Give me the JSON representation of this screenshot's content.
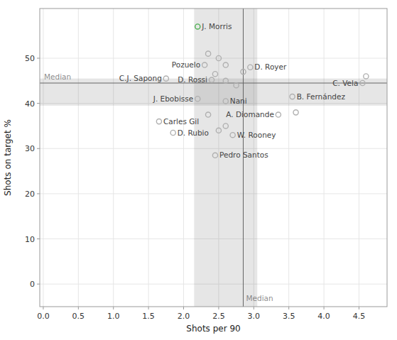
{
  "chart_data": {
    "type": "scatter",
    "x": [
      2.2,
      2.3,
      1.75,
      2.4,
      2.2,
      2.6,
      1.65,
      1.85,
      2.7,
      2.45,
      2.95,
      3.55,
      3.35,
      4.55,
      2.35,
      2.5,
      2.6,
      2.85,
      2.45,
      2.6,
      2.75,
      2.35,
      2.6,
      2.5,
      4.6,
      3.6
    ],
    "values": [
      57,
      48.5,
      45.5,
      45.2,
      41,
      40.5,
      36,
      33.5,
      33,
      28.5,
      48,
      41.5,
      37.5,
      44.5,
      51,
      50,
      48.5,
      47,
      46.5,
      45,
      44,
      37.5,
      35,
      34,
      46,
      38
    ],
    "labels": [
      "J. Morris",
      "Pozuelo",
      "C.J. Sapong",
      "D. Rossi",
      "J. Ebobisse",
      "Nani",
      "Carles Gil",
      "D. Rubio",
      "W. Rooney",
      "Pedro Santos",
      "D. Royer",
      "B. Fernández",
      "A. Diomande",
      "C. Vela",
      null,
      null,
      null,
      null,
      null,
      null,
      null,
      null,
      null,
      null,
      null,
      null
    ],
    "colors": [
      "#4caf50",
      "#b0b0b0",
      "#b0b0b0",
      "#b0b0b0",
      "#b0b0b0",
      "#b0b0b0",
      "#b0b0b0",
      "#b0b0b0",
      "#b0b0b0",
      "#b0b0b0",
      "#b0b0b0",
      "#b0b0b0",
      "#b0b0b0",
      "#b0b0b0",
      "#b0b0b0",
      "#b0b0b0",
      "#b0b0b0",
      "#b0b0b0",
      "#b0b0b0",
      "#b0b0b0",
      "#b0b0b0",
      "#b0b0b0",
      "#b0b0b0",
      "#b0b0b0",
      "#b0b0b0",
      "#b0b0b0"
    ],
    "reference_lines": [
      {
        "axis": "x",
        "value": 2.85,
        "band": [
          2.15,
          3.05
        ],
        "label": "Median",
        "color": "#666666"
      },
      {
        "axis": "y",
        "value": 44.5,
        "band": [
          39.5,
          45.5
        ],
        "label": "Median",
        "color": "#666666"
      }
    ],
    "xlim": [
      -0.05,
      4.9
    ],
    "ylim": [
      -5,
      61
    ],
    "xticks": [
      {
        "value": 0,
        "label": "0.0"
      },
      0.5,
      {
        "value": 1,
        "label": "1.0"
      },
      1.5,
      {
        "value": 2,
        "label": "2.0"
      },
      2.5,
      {
        "value": 3,
        "label": "3.0"
      },
      3.5,
      {
        "value": 4,
        "label": "4.0"
      },
      4.5
    ],
    "yticks": [
      0,
      10,
      20,
      30,
      40,
      50
    ],
    "xlabel": "Shots per 90",
    "ylabel": "Shots on target %",
    "grid": true
  }
}
